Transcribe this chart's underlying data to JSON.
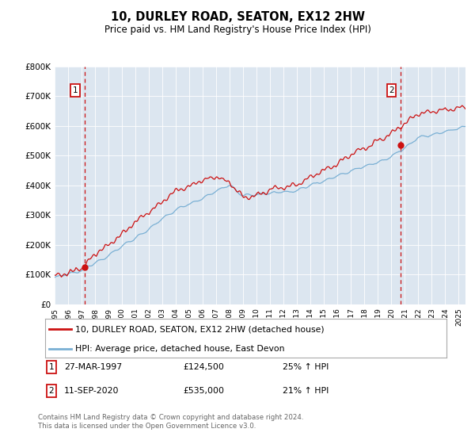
{
  "title": "10, DURLEY ROAD, SEATON, EX12 2HW",
  "subtitle": "Price paid vs. HM Land Registry's House Price Index (HPI)",
  "ylim": [
    0,
    800000
  ],
  "yticks": [
    0,
    100000,
    200000,
    300000,
    400000,
    500000,
    600000,
    700000,
    800000
  ],
  "ytick_labels": [
    "£0",
    "£100K",
    "£200K",
    "£300K",
    "£400K",
    "£500K",
    "£600K",
    "£700K",
    "£800K"
  ],
  "bg_color": "#dce6f0",
  "fig_bg_color": "#ffffff",
  "line1_color": "#cc1111",
  "line2_color": "#7ab0d4",
  "transaction1": {
    "year": 1997.23,
    "price": 124500,
    "label": "1",
    "date": "27-MAR-1997",
    "amount": "£124,500",
    "pct": "25%",
    "dir": "↑"
  },
  "transaction2": {
    "year": 2020.71,
    "price": 535000,
    "label": "2",
    "date": "11-SEP-2020",
    "amount": "£535,000",
    "pct": "21%",
    "dir": "↑"
  },
  "legend_line1": "10, DURLEY ROAD, SEATON, EX12 2HW (detached house)",
  "legend_line2": "HPI: Average price, detached house, East Devon",
  "footer1": "Contains HM Land Registry data © Crown copyright and database right 2024.",
  "footer2": "This data is licensed under the Open Government Licence v3.0.",
  "xmin": 1995.0,
  "xmax": 2025.5,
  "vline_color": "#cc1111",
  "marker_color": "#cc1111",
  "seed": 12345
}
